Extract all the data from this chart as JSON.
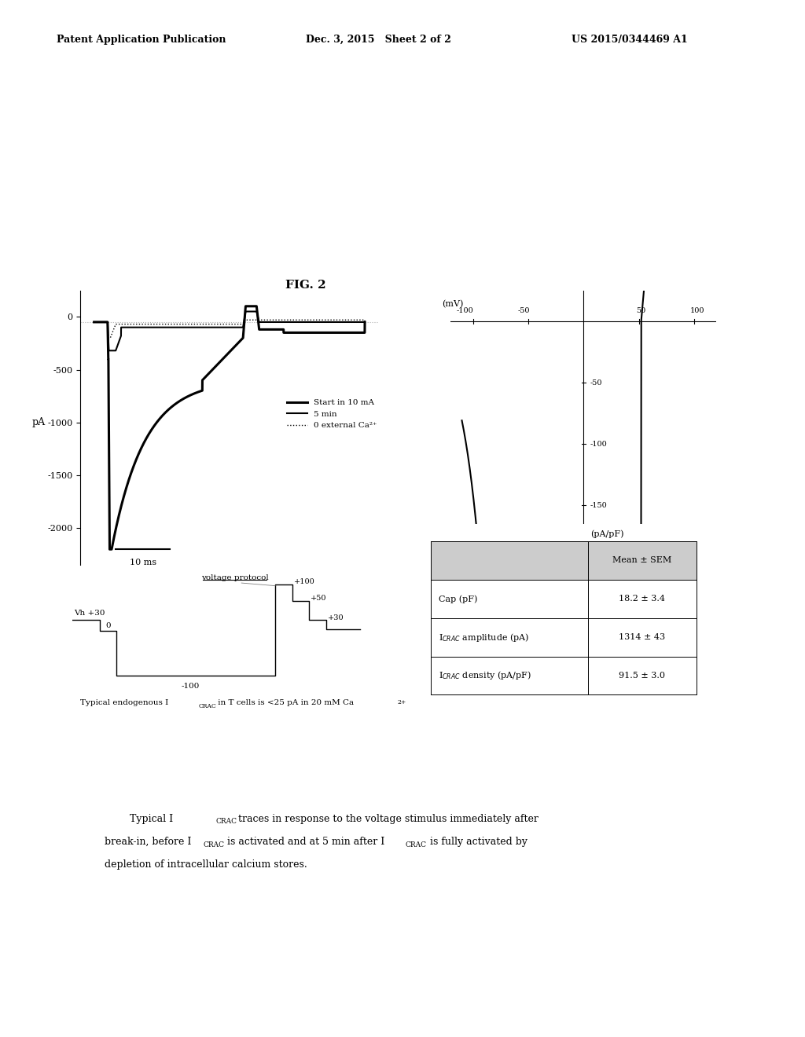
{
  "header_left": "Patent Application Publication",
  "header_center": "Dec. 3, 2015   Sheet 2 of 2",
  "header_right": "US 2015/0344469 A1",
  "fig2_label": "FIG. 2",
  "left_plot": {
    "ylabel": "pA",
    "yticks": [
      0,
      -500,
      -1000,
      -1500,
      -2000
    ],
    "ylim": [
      -2350,
      250
    ],
    "legend": [
      "Start in 10 mA",
      "5 min",
      "0 external Ca2+"
    ],
    "scale_bar_label": "10 ms"
  },
  "right_plot": {
    "xticks": [
      -100,
      -50,
      50,
      100
    ],
    "yticks": [
      -50,
      -100,
      -150
    ],
    "xlim": [
      -120,
      120
    ],
    "ylim": [
      -165,
      25
    ]
  },
  "table": {
    "col1_header": "",
    "col2_header": "Mean ± SEM",
    "rows": [
      [
        "Cap (pF)",
        "18.2 ± 3.4"
      ],
      [
        "ICRAC amplitude (pA)",
        "1314 ± 43"
      ],
      [
        "ICRAC density (pA/pF)",
        "91.5 ± 3.0"
      ]
    ]
  },
  "caption": "Typical endogenous ICRAC in T cells is <25 pA in 20 mM Ca2+",
  "bottom_text_line1": "Typical I",
  "bottom_text_line2": "break-in, before I",
  "bottom_text_line3": "depletion of intracellular calcium stores.",
  "background_color": "#ffffff"
}
